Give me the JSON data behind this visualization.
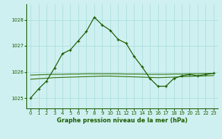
{
  "title": "Graphe pression niveau de la mer (hPa)",
  "background_color": "#cff0f0",
  "grid_color": "#aadddd",
  "line_color_main": "#1a5c00",
  "line_color_avg": "#2d6e00",
  "xlim": [
    -0.5,
    23.5
  ],
  "ylim": [
    1024.6,
    1028.6
  ],
  "yticks": [
    1025,
    1026,
    1027,
    1028
  ],
  "xticks": [
    0,
    1,
    2,
    3,
    4,
    5,
    6,
    7,
    8,
    9,
    10,
    11,
    12,
    13,
    14,
    15,
    16,
    17,
    18,
    19,
    20,
    21,
    22,
    23
  ],
  "series1_x": [
    0,
    1,
    2,
    3,
    4,
    5,
    6,
    7,
    8,
    9,
    10,
    11,
    12,
    13,
    14,
    15,
    16,
    17,
    18,
    19,
    20,
    21,
    22,
    23
  ],
  "series1_y": [
    1025.0,
    1025.35,
    1025.65,
    1026.15,
    1026.7,
    1026.85,
    1027.2,
    1027.55,
    1028.1,
    1027.8,
    1027.6,
    1027.25,
    1027.1,
    1026.6,
    1026.2,
    1025.75,
    1025.45,
    1025.45,
    1025.75,
    1025.85,
    1025.9,
    1025.85,
    1025.9,
    1025.95
  ],
  "series2_x": [
    0,
    1,
    2,
    3,
    4,
    5,
    6,
    7,
    8,
    9,
    10,
    11,
    12,
    13,
    14,
    15,
    16,
    17,
    18,
    19,
    20,
    21,
    22,
    23
  ],
  "series2_y": [
    1025.72,
    1025.74,
    1025.76,
    1025.78,
    1025.79,
    1025.8,
    1025.81,
    1025.82,
    1025.83,
    1025.84,
    1025.84,
    1025.83,
    1025.82,
    1025.81,
    1025.8,
    1025.79,
    1025.78,
    1025.79,
    1025.8,
    1025.82,
    1025.83,
    1025.84,
    1025.85,
    1025.86
  ],
  "series3_x": [
    0,
    1,
    2,
    3,
    4,
    5,
    6,
    7,
    8,
    9,
    10,
    11,
    12,
    13,
    14,
    15,
    16,
    17,
    18,
    19,
    20,
    21,
    22,
    23
  ],
  "series3_y": [
    1025.88,
    1025.89,
    1025.9,
    1025.91,
    1025.91,
    1025.92,
    1025.92,
    1025.93,
    1025.93,
    1025.93,
    1025.93,
    1025.93,
    1025.92,
    1025.92,
    1025.92,
    1025.91,
    1025.91,
    1025.91,
    1025.92,
    1025.92,
    1025.93,
    1025.93,
    1025.94,
    1025.94
  ]
}
